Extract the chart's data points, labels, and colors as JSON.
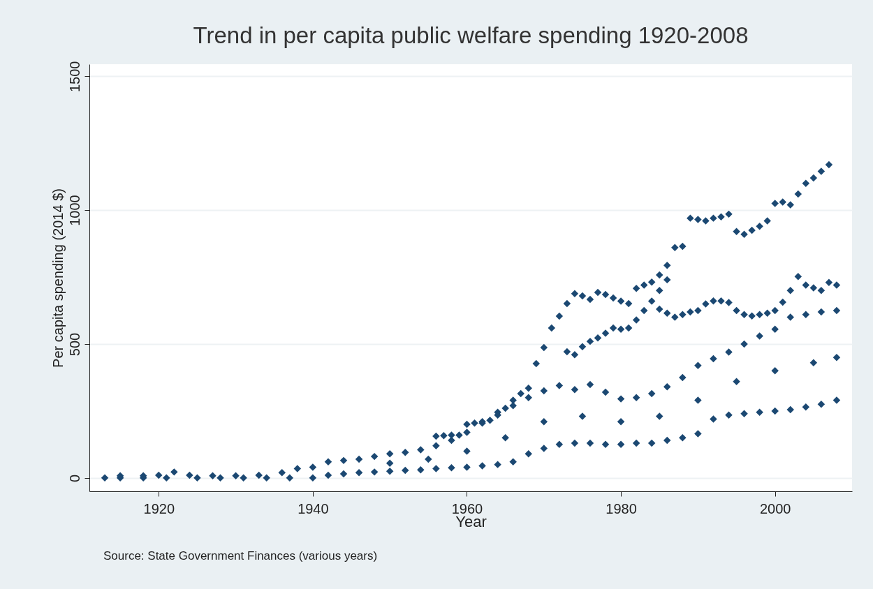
{
  "chart_data": {
    "type": "scatter",
    "title": "Trend in per capita public welfare spending 1920-2008",
    "xlabel": "Year",
    "ylabel": "Per capita spending (2014 $)",
    "annotations": [
      "Source: State Government Finances (various years)"
    ],
    "xlim": [
      1911,
      2010
    ],
    "xticks": [
      1920,
      1940,
      1960,
      1980,
      2000
    ],
    "ylim": [
      -50,
      1545
    ],
    "yticks": [
      0,
      500,
      1000,
      1500
    ],
    "grid": "y",
    "marker": "diamond",
    "legend": false,
    "series": [
      {
        "color": "#1b4872",
        "x": [
          1913,
          1915,
          1918,
          1921,
          1925,
          1928,
          1931,
          1934,
          1937,
          1940,
          1942,
          1944,
          1946,
          1948,
          1950,
          1952,
          1954,
          1956,
          1958,
          1960,
          1962,
          1964,
          1966,
          1968,
          1970,
          1972,
          1974,
          1976,
          1978,
          1980,
          1982,
          1984,
          1986,
          1988,
          1990,
          1992,
          1994,
          1996,
          1998,
          2000,
          2002,
          2004,
          2006,
          2008,
          1915,
          1918,
          1920,
          1922,
          1924,
          1927,
          1930,
          1933,
          1936,
          1938,
          1940,
          1942,
          1944,
          1946,
          1948,
          1950,
          1952,
          1954,
          1956,
          1958,
          1960,
          1962,
          1964,
          1966,
          1968,
          1970,
          1972,
          1974,
          1976,
          1978,
          1980,
          1982,
          1984,
          1986,
          1988,
          1990,
          1992,
          1994,
          1996,
          1998,
          2000,
          2002,
          2004,
          2006,
          2008,
          1950,
          1955,
          1960,
          1965,
          1970,
          1975,
          1980,
          1985,
          1990,
          1995,
          2000,
          2005,
          2008,
          1956,
          1957,
          1958,
          1959,
          1960,
          1961,
          1962,
          1963,
          1964,
          1965,
          1966,
          1967,
          1968,
          1969,
          1970,
          1971,
          1972,
          1973,
          1974,
          1975,
          1976,
          1977,
          1978,
          1979,
          1980,
          1981,
          1982,
          1983,
          1984,
          1985,
          1986,
          1987,
          1988,
          1989,
          1990,
          1991,
          1992,
          1993,
          1994,
          1995,
          1996,
          1997,
          1998,
          1999,
          2000,
          2001,
          2002,
          2003,
          2004,
          2005,
          2006,
          2007,
          1973,
          1974,
          1975,
          1976,
          1977,
          1978,
          1979,
          1980,
          1981,
          1982,
          1983,
          1984,
          1985,
          1986,
          1985,
          1986,
          1987,
          1988,
          1989,
          1990,
          1991,
          1992,
          1993,
          1994,
          1995,
          1996,
          1997,
          1998,
          1999,
          2000,
          2001,
          2002,
          2003,
          2004,
          2005,
          2006,
          2007,
          2008
        ],
        "values": [
          0,
          0,
          0,
          0,
          0,
          0,
          0,
          0,
          0,
          0,
          10,
          15,
          20,
          22,
          25,
          28,
          30,
          35,
          38,
          40,
          45,
          50,
          60,
          90,
          110,
          125,
          130,
          130,
          125,
          125,
          130,
          130,
          140,
          150,
          165,
          220,
          235,
          240,
          245,
          250,
          255,
          265,
          275,
          290,
          8,
          8,
          10,
          22,
          10,
          8,
          8,
          10,
          20,
          35,
          40,
          60,
          65,
          70,
          80,
          90,
          95,
          105,
          120,
          140,
          170,
          205,
          245,
          270,
          300,
          325,
          345,
          330,
          349,
          320,
          295,
          300,
          315,
          340,
          375,
          420,
          445,
          470,
          500,
          530,
          555,
          600,
          610,
          620,
          625,
          55,
          70,
          100,
          150,
          210,
          230,
          210,
          230,
          290,
          360,
          400,
          430,
          450,
          156,
          158,
          160,
          160,
          200,
          205,
          210,
          215,
          235,
          260,
          290,
          315,
          335,
          427,
          487,
          560,
          604,
          651,
          688,
          680,
          667,
          693,
          685,
          672,
          660,
          651,
          708,
          720,
          731,
          758,
          794,
          860,
          865,
          970,
          965,
          960,
          970,
          975,
          985,
          920,
          910,
          925,
          940,
          960,
          1025,
          1030,
          1020,
          1060,
          1100,
          1120,
          1145,
          1170,
          471,
          460,
          490,
          510,
          523,
          540,
          560,
          555,
          560,
          590,
          625,
          660,
          700,
          740,
          630,
          615,
          600,
          610,
          620,
          625,
          650,
          661,
          661,
          655,
          625,
          610,
          605,
          610,
          615,
          625,
          656,
          700,
          752,
          720,
          710,
          700,
          730,
          720
        ]
      }
    ]
  }
}
